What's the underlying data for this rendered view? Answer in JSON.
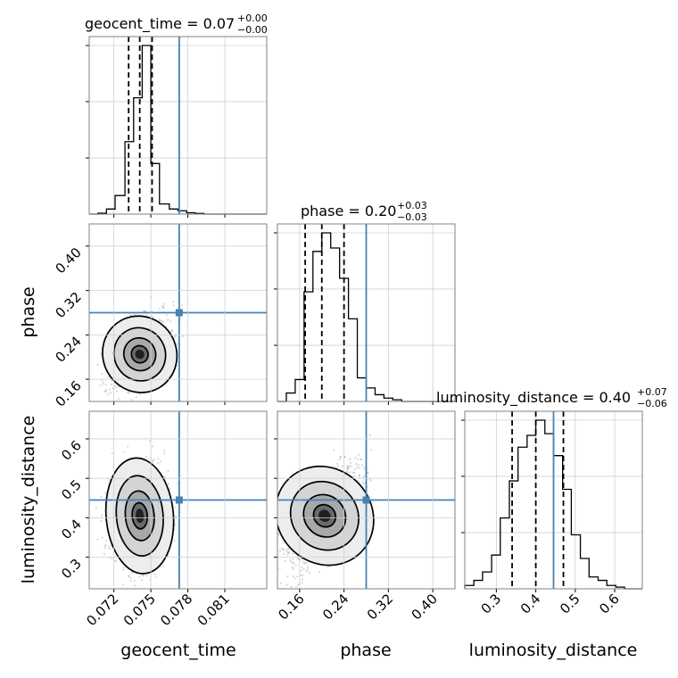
{
  "chart_data": {
    "type": "corner",
    "truth_color": "#4682b4",
    "parameters": [
      "geocent_time",
      "phase",
      "luminosity_distance"
    ],
    "axis_labels": [
      "geocent_time",
      "phase",
      "luminosity_distance"
    ],
    "titles": [
      {
        "text": "geocent_time = 0.07",
        "plus": "+0.00",
        "minus": "−0.00"
      },
      {
        "text": "phase = 0.20",
        "plus": "+0.03",
        "minus": "−0.03"
      },
      {
        "text": "luminosity_distance = 0.40",
        "plus": "+0.07",
        "minus": "−0.06"
      }
    ],
    "ranges": [
      [
        0.07,
        0.0844
      ],
      [
        0.12,
        0.44
      ],
      [
        0.22,
        0.67
      ]
    ],
    "ticks": [
      {
        "values": [
          0.072,
          0.075,
          0.078,
          0.081
        ],
        "labels": [
          "0.072",
          "0.075",
          "0.078",
          "0.081"
        ]
      },
      {
        "values": [
          0.16,
          0.24,
          0.32,
          0.4
        ],
        "labels": [
          "0.16",
          "0.24",
          "0.32",
          "0.40"
        ]
      },
      {
        "values": [
          0.3,
          0.4,
          0.5,
          0.6
        ],
        "labels": [
          "0.3",
          "0.4",
          "0.5",
          "0.6"
        ]
      }
    ],
    "truths": [
      0.0773,
      0.28,
      0.445
    ],
    "quantiles": [
      [
        0.0732,
        0.0741,
        0.0751
      ],
      [
        0.17,
        0.2,
        0.24
      ],
      [
        0.34,
        0.4,
        0.47
      ]
    ],
    "histograms": [
      {
        "bin_edges": [
          0.07,
          0.0707,
          0.0714,
          0.0721,
          0.0729,
          0.0736,
          0.0743,
          0.075,
          0.0757,
          0.0765,
          0.0772,
          0.0779,
          0.0786,
          0.0793,
          0.08,
          0.0808,
          0.0815,
          0.0822,
          0.0829,
          0.0837,
          0.0844
        ],
        "counts": [
          0,
          0.005,
          0.03,
          0.11,
          0.43,
          0.69,
          1.0,
          0.3,
          0.06,
          0.03,
          0.02,
          0.008,
          0.004,
          0,
          0,
          0,
          0,
          0,
          0,
          0
        ]
      },
      {
        "bin_edges": [
          0.12,
          0.136,
          0.152,
          0.168,
          0.184,
          0.2,
          0.216,
          0.232,
          0.248,
          0.264,
          0.28,
          0.296,
          0.312,
          0.328,
          0.344,
          0.36,
          0.376,
          0.392,
          0.408,
          0.424,
          0.44
        ],
        "counts": [
          0,
          0.05,
          0.13,
          0.65,
          0.89,
          1.0,
          0.91,
          0.73,
          0.49,
          0.14,
          0.08,
          0.04,
          0.02,
          0.01,
          0,
          0,
          0,
          0,
          0,
          0
        ]
      },
      {
        "bin_edges": [
          0.22,
          0.243,
          0.265,
          0.288,
          0.31,
          0.333,
          0.355,
          0.378,
          0.4,
          0.423,
          0.445,
          0.468,
          0.49,
          0.513,
          0.535,
          0.558,
          0.58,
          0.603,
          0.625,
          0.648,
          0.67
        ],
        "counts": [
          0.02,
          0.05,
          0.1,
          0.2,
          0.42,
          0.64,
          0.84,
          0.91,
          1.0,
          0.92,
          0.79,
          0.59,
          0.32,
          0.18,
          0.07,
          0.05,
          0.02,
          0.01,
          0,
          0
        ]
      }
    ],
    "pairs": [
      {
        "x": 0,
        "y": 1,
        "mean": [
          0.0741,
          0.205
        ],
        "sd": [
          0.0011,
          0.03
        ],
        "rho": 0.45
      },
      {
        "x": 0,
        "y": 2,
        "mean": [
          0.0741,
          0.405
        ],
        "sd": [
          0.0011,
          0.06
        ],
        "rho": 0.05
      },
      {
        "x": 1,
        "y": 2,
        "mean": [
          0.205,
          0.405
        ],
        "sd": [
          0.03,
          0.06
        ],
        "rho": 0.65
      }
    ],
    "grid": true
  }
}
